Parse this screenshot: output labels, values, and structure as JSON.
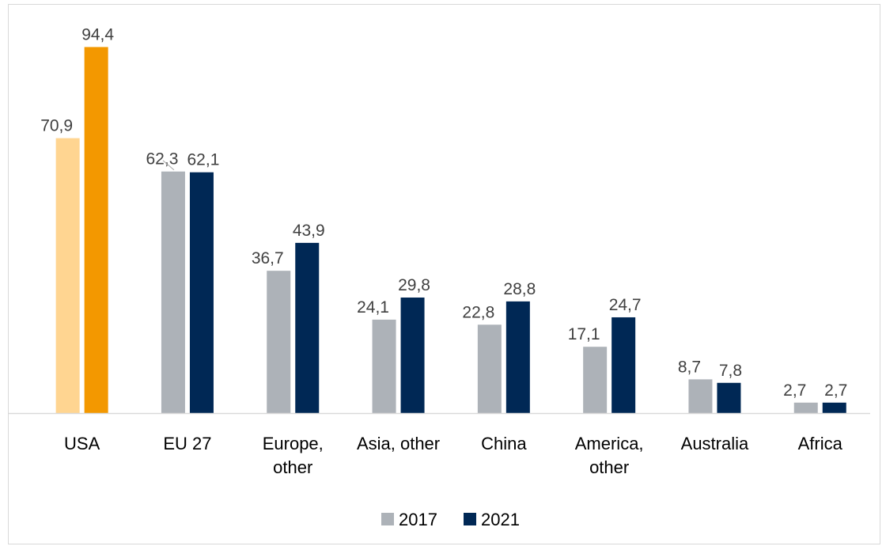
{
  "chart_data": {
    "type": "bar",
    "title": "",
    "xlabel": "",
    "ylabel": "",
    "ylim": [
      0,
      100
    ],
    "grid": false,
    "legend_position": "bottom",
    "categories": [
      [
        "USA"
      ],
      [
        "EU 27"
      ],
      [
        "Europe,",
        "other"
      ],
      [
        "Asia, other"
      ],
      [
        "China"
      ],
      [
        "America,",
        "other"
      ],
      [
        "Australia"
      ],
      [
        "Africa"
      ]
    ],
    "series": [
      {
        "name": "2017",
        "color": "#adb2b8",
        "values": [
          70.9,
          62.3,
          36.7,
          24.1,
          22.8,
          17.1,
          8.7,
          2.7
        ]
      },
      {
        "name": "2021",
        "color": "#002855",
        "values": [
          94.4,
          62.1,
          43.9,
          29.8,
          28.8,
          24.7,
          7.8,
          2.7
        ]
      }
    ],
    "value_labels": [
      [
        "70,9",
        "62,3",
        "36,7",
        "24,1",
        "22,8",
        "17,1",
        "8,7",
        "2,7"
      ],
      [
        "94,4",
        "62,1",
        "43,9",
        "29,8",
        "28,8",
        "24,7",
        "7,8",
        "2,7"
      ]
    ],
    "highlight": {
      "category_index": 0,
      "colors": [
        "#ffd591",
        "#f39800"
      ]
    },
    "axis_line_color": "#d9d9d9",
    "leader_line_color": "#a6a6a6"
  }
}
